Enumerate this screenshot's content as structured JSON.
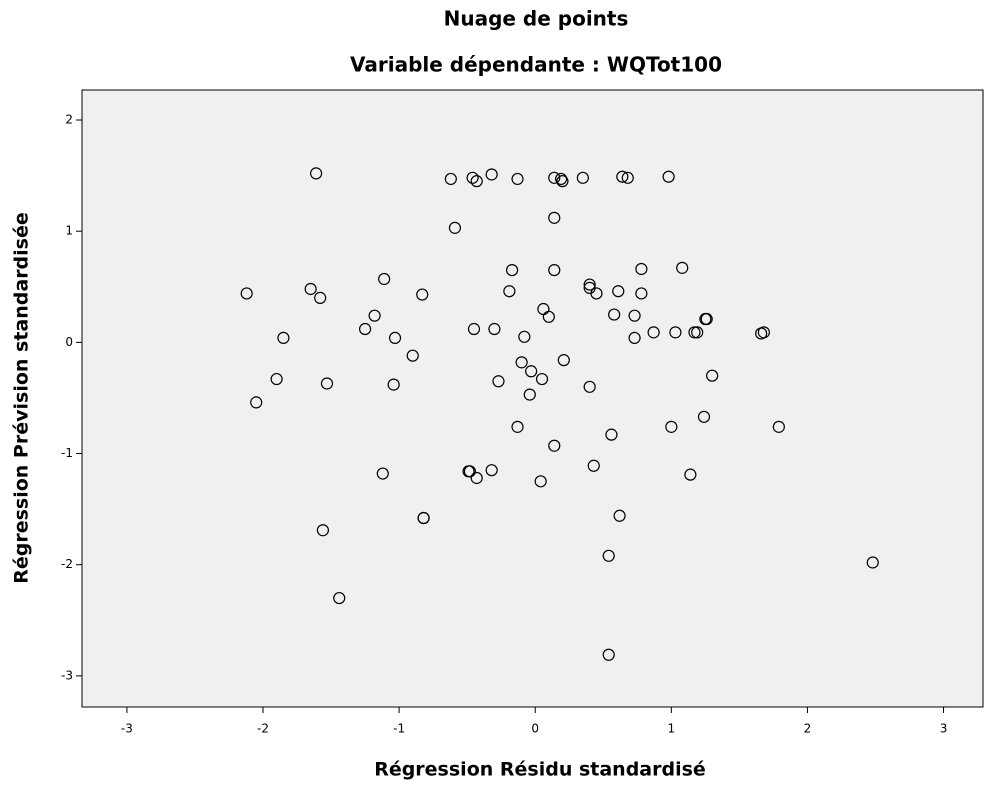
{
  "chart_data": {
    "type": "scatter",
    "title": "Nuage de points",
    "subtitle": "Variable dépendante : WQTot100",
    "x_label": "Régression Résidu standardisé",
    "y_label": "Régression Prévision standardisée",
    "xlim": [
      -3.33,
      3.29
    ],
    "ylim": [
      -3.28,
      2.27
    ],
    "xticks": [
      -3,
      -2,
      -1,
      0,
      1,
      2,
      3
    ],
    "yticks": [
      -3,
      -2,
      -1,
      0,
      1,
      2
    ],
    "grid": false,
    "color": "#000000",
    "x": [
      -1.61,
      -0.62,
      -0.46,
      -0.43,
      -0.32,
      -0.13,
      0.19,
      0.2,
      0.14,
      0.35,
      0.64,
      0.68,
      0.98,
      0.14,
      -0.59,
      -2.12,
      -1.65,
      -1.58,
      -1.11,
      -0.83,
      -1.18,
      -1.25,
      -1.85,
      -1.03,
      -0.9,
      -1.9,
      -1.53,
      -1.04,
      -2.05,
      -0.17,
      -0.19,
      0.14,
      0.06,
      0.1,
      -0.45,
      -0.3,
      -0.08,
      -0.1,
      -0.03,
      0.05,
      0.21,
      -0.27,
      -0.04,
      0.4,
      0.4,
      0.45,
      0.61,
      0.78,
      1.08,
      0.78,
      0.58,
      0.73,
      0.73,
      0.87,
      1.03,
      1.17,
      1.19,
      1.25,
      1.26,
      1.66,
      1.68,
      1.3,
      0.4,
      -0.13,
      0.14,
      0.56,
      1.0,
      1.24,
      1.79,
      -1.12,
      -0.49,
      -0.48,
      -0.43,
      -0.32,
      0.04,
      0.43,
      1.14,
      -0.82,
      -0.82,
      0.62,
      -1.56,
      0.54,
      2.48,
      -1.44,
      0.54
    ],
    "values": [
      1.52,
      1.47,
      1.48,
      1.45,
      1.51,
      1.47,
      1.47,
      1.45,
      1.48,
      1.48,
      1.49,
      1.48,
      1.49,
      1.12,
      1.03,
      0.44,
      0.48,
      0.4,
      0.57,
      0.43,
      0.24,
      0.12,
      0.04,
      0.04,
      -0.12,
      -0.33,
      -0.37,
      -0.38,
      -0.54,
      0.65,
      0.46,
      0.65,
      0.3,
      0.23,
      0.12,
      0.12,
      0.05,
      -0.18,
      -0.26,
      -0.33,
      -0.16,
      -0.35,
      -0.47,
      0.52,
      0.49,
      0.44,
      0.46,
      0.66,
      0.67,
      0.44,
      0.25,
      0.24,
      0.04,
      0.09,
      0.09,
      0.09,
      0.09,
      0.21,
      0.21,
      0.08,
      0.09,
      -0.3,
      -0.4,
      -0.76,
      -0.93,
      -0.83,
      -0.76,
      -0.67,
      -0.76,
      -1.18,
      -1.16,
      -1.16,
      -1.22,
      -1.15,
      -1.25,
      -1.11,
      -1.19,
      -1.58,
      -1.58,
      -1.56,
      -1.69,
      -1.92,
      -1.98,
      -2.3,
      -2.81
    ]
  }
}
